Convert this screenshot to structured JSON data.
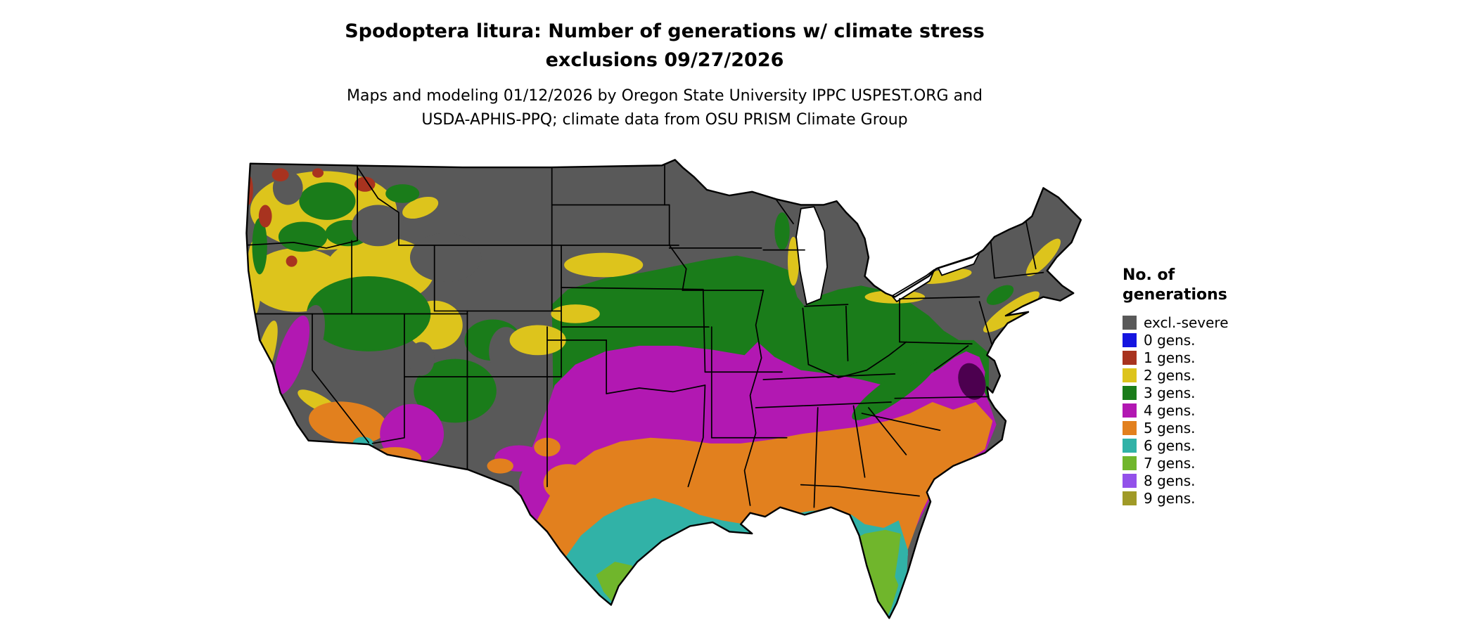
{
  "title": {
    "line1": "Spodoptera litura: Number of generations w/ climate stress",
    "line2": "exclusions 09/27/2026"
  },
  "subtitle": {
    "line1": "Maps and modeling 01/12/2026 by Oregon State University IPPC USPEST.ORG and",
    "line2": "USDA-APHIS-PPQ; climate data from OSU PRISM Climate Group"
  },
  "legend": {
    "title_line1": "No. of",
    "title_line2": "generations",
    "items": [
      {
        "key": "excl",
        "label": "excl.-severe"
      },
      {
        "key": "g0",
        "label": "0 gens."
      },
      {
        "key": "g1",
        "label": "1 gens."
      },
      {
        "key": "g2",
        "label": "2 gens."
      },
      {
        "key": "g3",
        "label": "3 gens."
      },
      {
        "key": "g4",
        "label": "4 gens."
      },
      {
        "key": "g5",
        "label": "5 gens."
      },
      {
        "key": "g6",
        "label": "6 gens."
      },
      {
        "key": "g7",
        "label": "7 gens."
      },
      {
        "key": "g8",
        "label": "8 gens."
      },
      {
        "key": "g9",
        "label": "9 gens."
      }
    ]
  },
  "palette": {
    "excl": "#595959",
    "g0": "#1515e0",
    "g1": "#a8331f",
    "g2": "#ddc41c",
    "g3": "#1a7c1a",
    "g4": "#b218b2",
    "g5": "#e2801e",
    "g6": "#31b2a7",
    "g7": "#70b62c",
    "g8": "#9351ea",
    "g9": "#a09a27",
    "dark4": "#4c004f"
  }
}
